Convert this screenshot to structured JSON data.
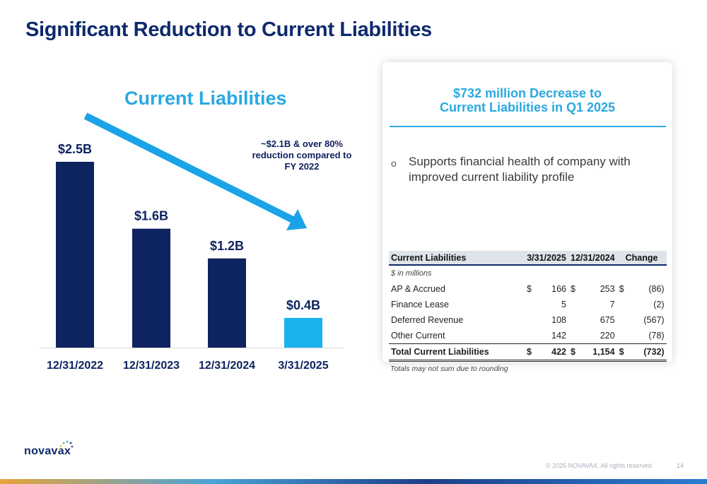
{
  "page": {
    "title": "Significant Reduction to Current Liabilities"
  },
  "chart_data": {
    "type": "bar",
    "title": "Current Liabilities",
    "categories": [
      "12/31/2022",
      "12/31/2023",
      "12/31/2024",
      "3/31/2025"
    ],
    "values": [
      2.5,
      1.6,
      1.2,
      0.4
    ],
    "data_labels": [
      "$2.5B",
      "$1.6B",
      "$1.2B",
      "$0.4B"
    ],
    "bar_colors": [
      "#0e2460",
      "#0e2460",
      "#0e2460",
      "#1ab2ee"
    ],
    "arrow_color": "#1aa3e8",
    "annotation": "~$2.1B & over 80% reduction compared to FY 2022",
    "xlabel": "",
    "ylabel": "",
    "ylim": [
      0,
      3.0
    ],
    "grid": false
  },
  "card": {
    "heading_line1": "$732 million Decrease to",
    "heading_line2": "Current Liabilities in Q1 2025",
    "bullet_mark": "o",
    "bullet": "Supports financial health of company with improved current liability profile"
  },
  "table": {
    "headers": [
      "Current Liabilities",
      "3/31/2025",
      "12/31/2024",
      "Change"
    ],
    "units": "$ in millions",
    "rows": [
      {
        "label": "AP & Accrued",
        "d1": "$",
        "v1": "166",
        "d2": "$",
        "v2": "253",
        "d3": "$",
        "v3": "(86)"
      },
      {
        "label": "Finance Lease",
        "d1": "",
        "v1": "5",
        "d2": "",
        "v2": "7",
        "d3": "",
        "v3": "(2)"
      },
      {
        "label": "Deferred Revenue",
        "d1": "",
        "v1": "108",
        "d2": "",
        "v2": "675",
        "d3": "",
        "v3": "(567)"
      },
      {
        "label": "Other Current",
        "d1": "",
        "v1": "142",
        "d2": "",
        "v2": "220",
        "d3": "",
        "v3": "(78)"
      }
    ],
    "total": {
      "label": "Total Current Liabilities",
      "d1": "$",
      "v1": "422",
      "d2": "$",
      "v2": "1,154",
      "d3": "$",
      "v3": "(732)"
    },
    "footnote": "Totals may not sum due to rounding"
  },
  "footer": {
    "logo": "novavax",
    "copyright": "© 2025 NOVAVAX. All rights reserved.",
    "page_number": "14"
  }
}
